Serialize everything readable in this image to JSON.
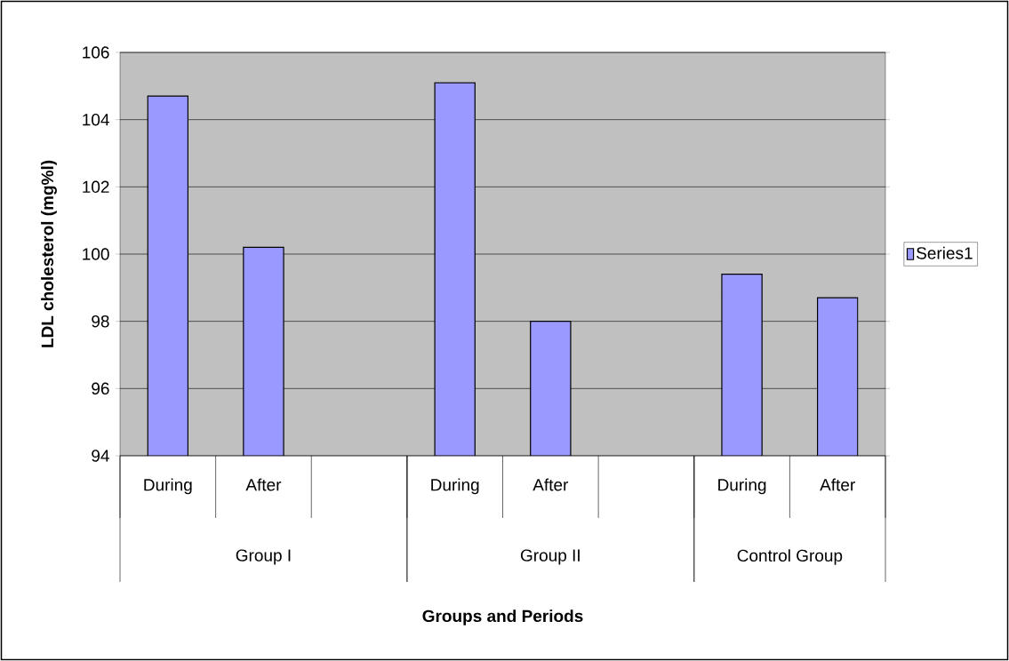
{
  "chart_data": {
    "type": "bar",
    "ylabel": "LDL cholesterol (mg%l)",
    "categories": [
      "During",
      "After",
      null,
      "During",
      "After",
      null,
      "During",
      "After"
    ],
    "annotations": [
      "Group I",
      "Group II",
      "Control Group",
      "Groups and Periods"
    ],
    "series": [
      {
        "name": "Series1",
        "color": "#9999ff",
        "values": [
          104.7,
          100.2,
          null,
          105.1,
          98.0,
          null,
          99.4,
          98.7
        ]
      }
    ],
    "ylim": [
      94,
      106
    ],
    "yticks": [
      94,
      96,
      98,
      100,
      102,
      104,
      106
    ],
    "grid": "y",
    "legend": "right"
  }
}
